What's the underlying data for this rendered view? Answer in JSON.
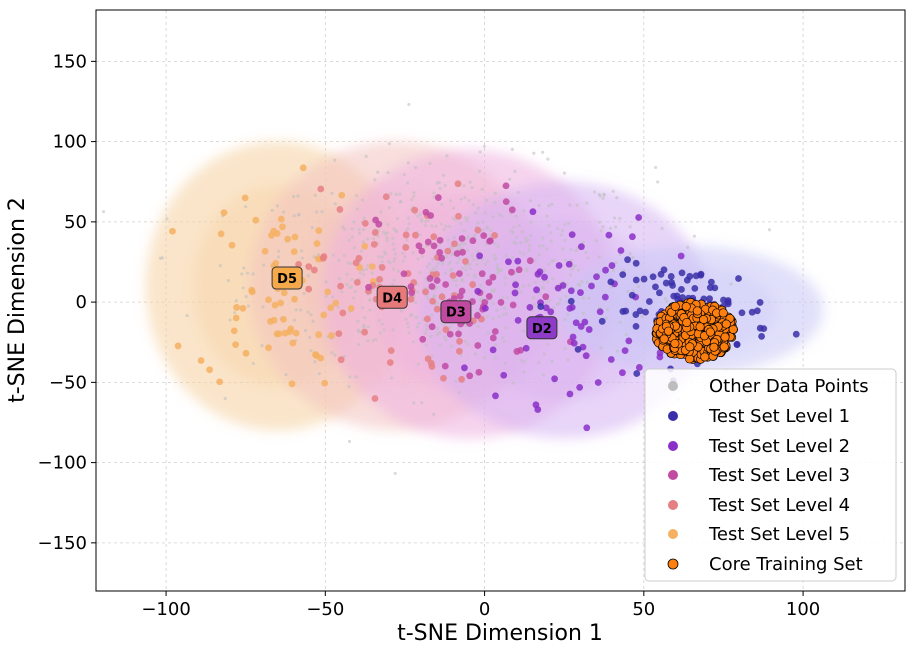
{
  "chart_data": {
    "type": "scatter",
    "title": "",
    "xlabel": "t-SNE Dimension 1",
    "ylabel": "t-SNE Dimension 2",
    "xlim": [
      -122,
      132
    ],
    "ylim": [
      -180,
      182
    ],
    "xticks": [
      -100,
      -50,
      0,
      50,
      100
    ],
    "yticks": [
      -150,
      -100,
      -50,
      0,
      50,
      100,
      150
    ],
    "xtick_labels": [
      "−100",
      "−50",
      "0",
      "50",
      "100"
    ],
    "ytick_labels": [
      "−150",
      "−100",
      "−50",
      "0",
      "50",
      "100",
      "150"
    ],
    "grid": true,
    "legend_position": "bottom-right",
    "series": [
      {
        "name": "Other Data Points",
        "color": "#bdbdbd",
        "center": [
          -10,
          20
        ],
        "spread": [
          45,
          45
        ],
        "count": 700
      },
      {
        "name": "Test Set Level 1",
        "color": "#3a2fa8",
        "region_color": "#c9c6f5",
        "center": [
          65,
          -5
        ],
        "spread": [
          18,
          20
        ],
        "count": 110
      },
      {
        "name": "Test Set Level 2",
        "color": "#8a2fc8",
        "region_color": "#d6b3f2",
        "center": [
          25,
          -5
        ],
        "spread": [
          20,
          40
        ],
        "count": 70
      },
      {
        "name": "Test Set Level 3",
        "color": "#c14aa3",
        "region_color": "#efb0e0",
        "center": [
          -5,
          5
        ],
        "spread": [
          20,
          45
        ],
        "count": 70
      },
      {
        "name": "Test Set Level 4",
        "color": "#e57f84",
        "region_color": "#f3c3c0",
        "center": [
          -28,
          10
        ],
        "spread": [
          20,
          45
        ],
        "count": 70
      },
      {
        "name": "Test Set Level 5",
        "color": "#f5b061",
        "region_color": "#f5cf9e",
        "center": [
          -65,
          10
        ],
        "spread": [
          18,
          45
        ],
        "count": 70
      },
      {
        "name": "Core Training Set",
        "color": "#ff7f0e",
        "center": [
          66,
          -18
        ],
        "spread": [
          16,
          16
        ],
        "count": 450
      }
    ],
    "annotations": [
      {
        "text": "D5",
        "x": -62,
        "y": 15,
        "color": "#f5a94a"
      },
      {
        "text": "D4",
        "x": -29,
        "y": 3,
        "color": "#e8797a"
      },
      {
        "text": "D3",
        "x": -9,
        "y": -6,
        "color": "#c04aa0"
      },
      {
        "text": "D2",
        "x": 18,
        "y": -16,
        "color": "#8e3bc8"
      }
    ]
  }
}
